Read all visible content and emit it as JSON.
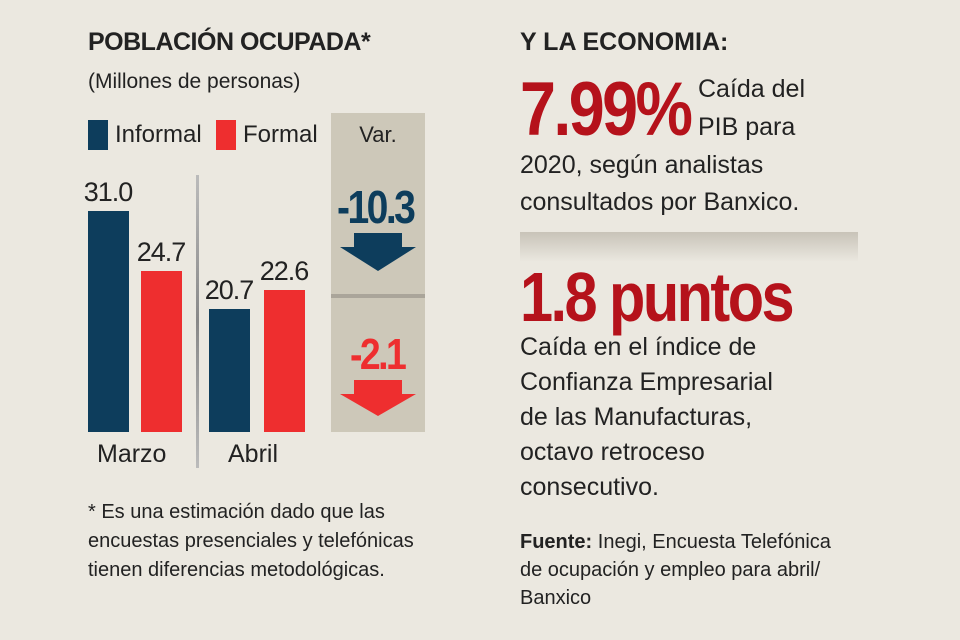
{
  "left": {
    "title": "POBLACIÓN OCUPADA*",
    "subtitle": "(Millones de personas)",
    "note": "* Es una estimación dado que las encuestas presenciales y telefónicas tienen diferencias metodológicas."
  },
  "chart_data": {
    "type": "bar",
    "categories": [
      "Marzo",
      "Abril"
    ],
    "series": [
      {
        "name": "Informal",
        "values": [
          31.0,
          20.7
        ],
        "color": "#0d3d5c"
      },
      {
        "name": "Formal",
        "values": [
          24.7,
          22.6
        ],
        "color": "#ee2e2f"
      }
    ],
    "data_labels": [
      [
        "31.0",
        "20.7"
      ],
      [
        "24.7",
        "22.6"
      ]
    ],
    "legend": "top",
    "variation": {
      "label": "Var.",
      "items": [
        {
          "value": "-10.3",
          "color": "#0d3d5c",
          "icon": "arrow-down-icon"
        },
        {
          "value": "-2.1",
          "color": "#ee2e2f",
          "icon": "arrow-down-icon"
        }
      ]
    }
  },
  "right": {
    "heading": "Y LA ECONOMIA:",
    "stat1": {
      "value": "7.99%",
      "text_a": "Caída del",
      "text_b": "PIB para",
      "text_c": "2020, según analistas",
      "text_d": "consultados por Banxico."
    },
    "stat2": {
      "value": "1.8 puntos",
      "lines": [
        "Caída en el índice de",
        "Confianza Empresarial",
        "de las Manufacturas,",
        "octavo retroceso",
        "consecutivo."
      ]
    },
    "source_label": "Fuente:",
    "source_text": " Inegi, Encuesta Telefónica de ocupación y empleo para abril/ Banxico"
  },
  "colors": {
    "accent_red": "#b5121b",
    "navy": "#0d3d5c",
    "red": "#ee2e2f",
    "background": "#ebe8e0"
  }
}
